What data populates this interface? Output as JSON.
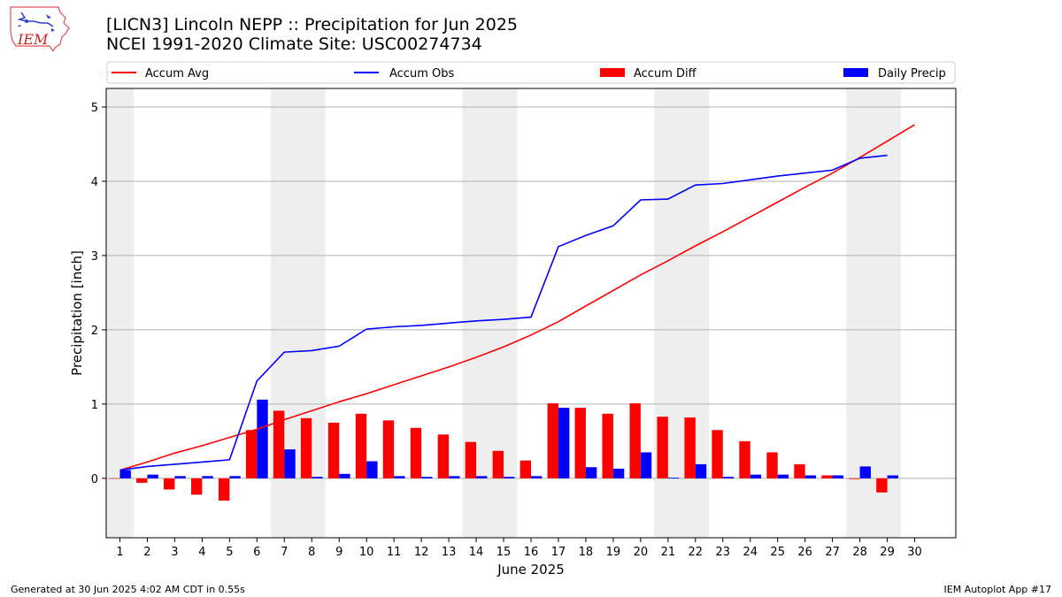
{
  "header": {
    "title_line1": "[LICN3] Lincoln NEPP :: Precipitation for Jun 2025",
    "title_line2": "NCEI 1991-2020 Climate Site: USC00274734"
  },
  "logo": {
    "text": "IEM",
    "icon": "iem-iowa-logo-icon"
  },
  "footer": {
    "left": "Generated at 30 Jun 2025 4:02 AM CDT in 0.55s",
    "right": "IEM Autoplot App #17"
  },
  "colors": {
    "avg": "#ff0000",
    "obs": "#0000ff",
    "diff": "#ff0000",
    "daily": "#0000ff",
    "weekend_shade": "#eeeeee",
    "grid": "#b0b0b0"
  },
  "chart_data": {
    "type": "bar",
    "xlabel": "June 2025",
    "ylabel": "Precipitation [inch]",
    "ylim": [
      -0.8,
      5.25
    ],
    "xlim": [
      0.5,
      31.5
    ],
    "yticks": [
      0,
      1,
      2,
      3,
      4,
      5
    ],
    "grid": true,
    "legend_position": "top",
    "weekend_shading": [
      [
        0.5,
        1.5
      ],
      [
        6.5,
        8.5
      ],
      [
        13.5,
        15.5
      ],
      [
        20.5,
        22.5
      ],
      [
        27.5,
        29.5
      ]
    ],
    "x": [
      1,
      2,
      3,
      4,
      5,
      6,
      7,
      8,
      9,
      10,
      11,
      12,
      13,
      14,
      15,
      16,
      17,
      18,
      19,
      20,
      21,
      22,
      23,
      24,
      25,
      26,
      27,
      28,
      29,
      30
    ],
    "series": [
      {
        "name": "Accum Avg",
        "type": "line",
        "x": [
          1,
          2,
          3,
          4,
          5,
          6,
          7,
          8,
          9,
          10,
          11,
          12,
          13,
          14,
          15,
          16,
          17,
          18,
          19,
          20,
          21,
          22,
          23,
          24,
          25,
          26,
          27,
          28,
          29,
          30
        ],
        "values": [
          0.11,
          0.22,
          0.34,
          0.44,
          0.55,
          0.66,
          0.79,
          0.91,
          1.03,
          1.14,
          1.26,
          1.38,
          1.5,
          1.63,
          1.77,
          1.93,
          2.11,
          2.32,
          2.53,
          2.74,
          2.93,
          3.13,
          3.32,
          3.52,
          3.72,
          3.92,
          4.11,
          4.32,
          4.54,
          4.76
        ]
      },
      {
        "name": "Accum Obs",
        "type": "line",
        "x": [
          1,
          2,
          3,
          4,
          5,
          6,
          7,
          8,
          9,
          10,
          11,
          12,
          13,
          14,
          15,
          16,
          17,
          18,
          19,
          20,
          21,
          22,
          23,
          24,
          25,
          26,
          27,
          28,
          29
        ],
        "values": [
          0.11,
          0.16,
          0.19,
          0.22,
          0.25,
          1.31,
          1.7,
          1.72,
          1.78,
          2.01,
          2.04,
          2.06,
          2.09,
          2.12,
          2.14,
          2.17,
          3.12,
          3.27,
          3.4,
          3.75,
          3.76,
          3.95,
          3.97,
          4.02,
          4.07,
          4.11,
          4.15,
          4.31,
          4.35
        ]
      },
      {
        "name": "Accum Diff",
        "type": "bar",
        "x": [
          1,
          2,
          3,
          4,
          5,
          6,
          7,
          8,
          9,
          10,
          11,
          12,
          13,
          14,
          15,
          16,
          17,
          18,
          19,
          20,
          21,
          22,
          23,
          24,
          25,
          26,
          27,
          28,
          29
        ],
        "values": [
          0.0,
          -0.06,
          -0.15,
          -0.22,
          -0.3,
          0.65,
          0.91,
          0.81,
          0.75,
          0.87,
          0.78,
          0.68,
          0.59,
          0.49,
          0.37,
          0.24,
          1.01,
          0.95,
          0.87,
          1.01,
          0.83,
          0.82,
          0.65,
          0.5,
          0.35,
          0.19,
          0.04,
          -0.01,
          -0.19
        ]
      },
      {
        "name": "Daily Precip",
        "type": "bar",
        "x": [
          1,
          2,
          3,
          4,
          5,
          6,
          7,
          8,
          9,
          10,
          11,
          12,
          13,
          14,
          15,
          16,
          17,
          18,
          19,
          20,
          21,
          22,
          23,
          24,
          25,
          26,
          27,
          28,
          29
        ],
        "values": [
          0.11,
          0.05,
          0.03,
          0.03,
          0.03,
          1.06,
          0.39,
          0.02,
          0.06,
          0.23,
          0.03,
          0.02,
          0.03,
          0.03,
          0.02,
          0.03,
          0.95,
          0.15,
          0.13,
          0.35,
          0.01,
          0.19,
          0.02,
          0.05,
          0.05,
          0.04,
          0.04,
          0.16,
          0.04
        ]
      }
    ]
  }
}
